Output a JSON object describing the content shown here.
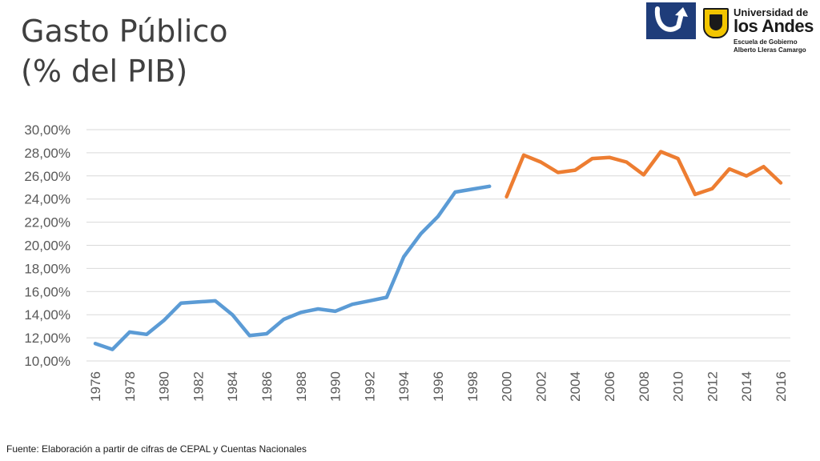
{
  "title_lines": [
    "Gasto Público",
    "(% del PIB)"
  ],
  "logos": {
    "university_name_line1": "Universidad de",
    "university_name_line2": "los Andes",
    "school_line1": "Escuela de Gobierno",
    "school_line2": "Alberto Lleras Camargo"
  },
  "source": "Fuente: Elaboración a partir de cifras de CEPAL y Cuentas Nacionales",
  "chart_data": {
    "type": "line",
    "title": "",
    "xlabel": "",
    "ylabel": "",
    "xlim": [
      1976,
      2016
    ],
    "ylim": [
      10,
      30
    ],
    "y_ticks": [
      "10,00%",
      "12,00%",
      "14,00%",
      "16,00%",
      "18,00%",
      "20,00%",
      "22,00%",
      "24,00%",
      "26,00%",
      "28,00%",
      "30,00%"
    ],
    "x_ticks": [
      "1976",
      "1978",
      "1980",
      "1982",
      "1984",
      "1986",
      "1988",
      "1990",
      "1992",
      "1994",
      "1996",
      "1998",
      "2000",
      "2002",
      "2004",
      "2006",
      "2008",
      "2010",
      "2012",
      "2014",
      "2016"
    ],
    "grid": true,
    "legend": "none",
    "series": [
      {
        "color": "#5b9bd5",
        "x": [
          1976,
          1977,
          1978,
          1979,
          1980,
          1981,
          1982,
          1983,
          1984,
          1985,
          1986,
          1987,
          1988,
          1989,
          1990,
          1991,
          1992,
          1993,
          1994,
          1995,
          1996,
          1997,
          1998,
          1999
        ],
        "values": [
          11.5,
          11.0,
          12.5,
          12.3,
          13.5,
          15.0,
          15.1,
          15.2,
          14.0,
          12.2,
          12.35,
          13.6,
          14.2,
          14.5,
          14.3,
          14.9,
          15.2,
          15.5,
          19.0,
          21.0,
          22.5,
          24.6,
          24.85,
          25.1
        ]
      },
      {
        "color": "#ed7d31",
        "x": [
          2000,
          2001,
          2002,
          2003,
          2004,
          2005,
          2006,
          2007,
          2008,
          2009,
          2010,
          2011,
          2012,
          2013,
          2014,
          2015,
          2016
        ],
        "values": [
          24.2,
          27.8,
          27.2,
          26.3,
          26.5,
          27.5,
          27.6,
          27.2,
          26.1,
          28.1,
          27.5,
          24.4,
          24.9,
          26.6,
          26.0,
          26.8,
          25.4
        ]
      }
    ]
  }
}
